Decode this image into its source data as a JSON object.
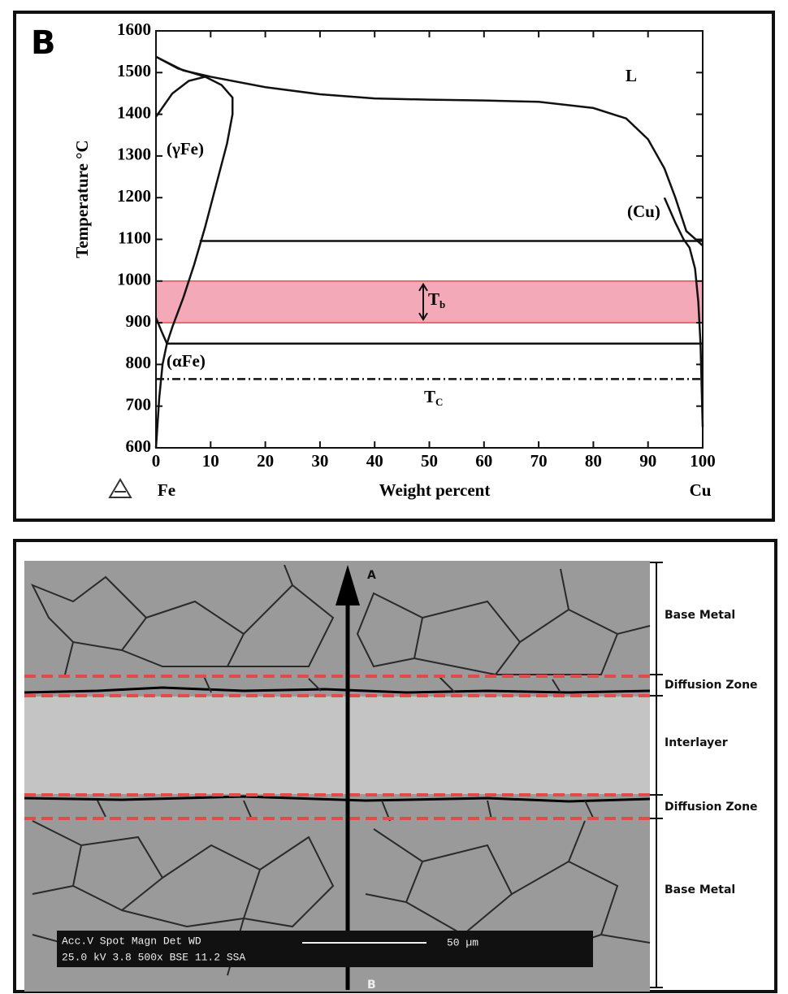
{
  "chart_data": {
    "type": "line",
    "panel_label": "B",
    "xlabel": "Weight percent",
    "ylabel": "Temperature °C",
    "x_end_labels": [
      "Fe",
      "Cu"
    ],
    "xlim": [
      0,
      100
    ],
    "ylim": [
      600,
      1600
    ],
    "xticks": [
      0,
      10,
      20,
      30,
      40,
      50,
      60,
      70,
      80,
      90,
      100
    ],
    "yticks": [
      600,
      700,
      800,
      900,
      1000,
      1100,
      1200,
      1300,
      1400,
      1500,
      1600
    ],
    "band": {
      "ylim": [
        900,
        1000
      ],
      "color": "#f4a9b8"
    },
    "series": [
      {
        "color": "#111111",
        "x": [
          0,
          5,
          10,
          20,
          30,
          40,
          50,
          60,
          70,
          80,
          86,
          90,
          93,
          95,
          97,
          100
        ],
        "values": [
          1538,
          1505,
          1490,
          1465,
          1448,
          1438,
          1435,
          1433,
          1430,
          1415,
          1390,
          1340,
          1270,
          1200,
          1120,
          1085
        ]
      },
      {
        "color": "#111111",
        "x": [
          0,
          4,
          9,
          12,
          14,
          14,
          13,
          11,
          9,
          7,
          5,
          3,
          2
        ],
        "values": [
          1538,
          1510,
          1490,
          1470,
          1440,
          1400,
          1330,
          1230,
          1130,
          1040,
          960,
          890,
          850
        ]
      },
      {
        "color": "#111111",
        "x": [
          0,
          3,
          6,
          9
        ],
        "values": [
          1394,
          1450,
          1480,
          1490
        ]
      },
      {
        "color": "#111111",
        "x": [
          100,
          99.6,
          99.2,
          98.6,
          97.6,
          96.5,
          95,
          93
        ],
        "values": [
          650,
          850,
          950,
          1030,
          1080,
          1100,
          1140,
          1200
        ]
      },
      {
        "color": "#111111",
        "x": [
          0,
          0.6,
          1.2,
          2
        ],
        "values": [
          600,
          720,
          800,
          850
        ]
      },
      {
        "color": "#111111",
        "x": [
          0,
          1,
          2
        ],
        "values": [
          912,
          880,
          850
        ]
      },
      {
        "color": "#111111",
        "x": [
          8,
          100
        ],
        "values": [
          1096,
          1096
        ]
      },
      {
        "color": "#111111",
        "x": [
          2,
          100
        ],
        "values": [
          850,
          850
        ]
      },
      {
        "color": "#111111",
        "dash": true,
        "x": [
          0,
          100
        ],
        "values": [
          765,
          765
        ]
      }
    ],
    "annotations": [
      {
        "text": "L"
      },
      {
        "text": "(γFe)"
      },
      {
        "text": "(Cu)"
      },
      {
        "text": "(αFe)"
      },
      {
        "text": "T",
        "sub": "b"
      },
      {
        "text": "T",
        "sub": "C"
      }
    ]
  },
  "micrograph": {
    "zones": [
      "Base Metal",
      "Diffusion Zone",
      "Interlayer",
      "Diffusion Zone",
      "Base Metal"
    ],
    "arrow_ends": [
      "A",
      "B"
    ],
    "info_header": "Acc.V  Spot Magn   Det  WD",
    "info_values": "25.0 kV 3.8  500x   BSE  11.2  SSA",
    "scale": "50 µm"
  }
}
